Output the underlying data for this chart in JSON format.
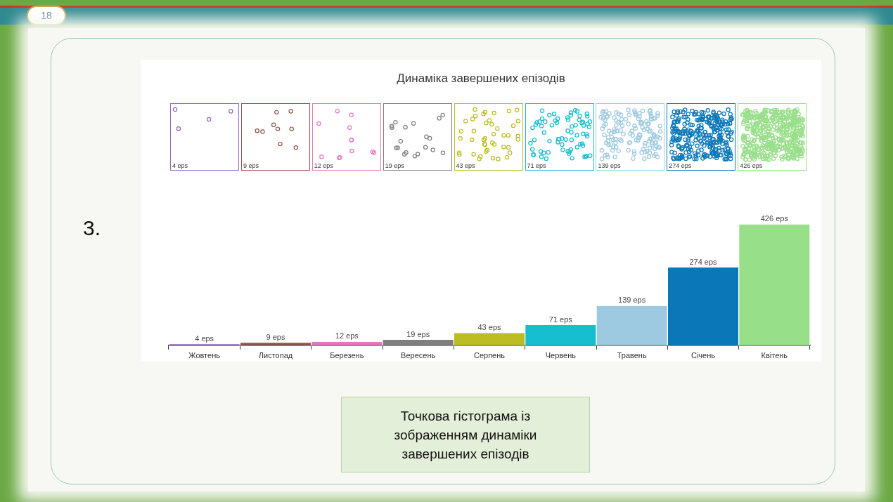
{
  "chart_data": {
    "type": "bar",
    "title": "Динаміка завершених епізодів",
    "categories": [
      "Жовтень",
      "Листопад",
      "Березень",
      "Вересень",
      "Серпень",
      "Червень",
      "Травень",
      "Січень",
      "Квітень"
    ],
    "values": [
      4,
      9,
      12,
      19,
      43,
      71,
      139,
      274,
      426
    ],
    "colors": [
      "#9467bd",
      "#8c564b",
      "#e377c2",
      "#7f7f7f",
      "#bcbd22",
      "#17becf",
      "#9ecae1",
      "#0a77b8",
      "#98df8a"
    ],
    "value_labels": [
      "4 eps",
      "9 eps",
      "12 eps",
      "19 eps",
      "43 eps",
      "71 eps",
      "139 eps",
      "274 eps",
      "426 eps"
    ],
    "annotations": [
      "18",
      "3.",
      "Точкова гістограма із зображенням динаміки завершених епізодів"
    ],
    "tick_labels": "x",
    "legend": false
  }
}
